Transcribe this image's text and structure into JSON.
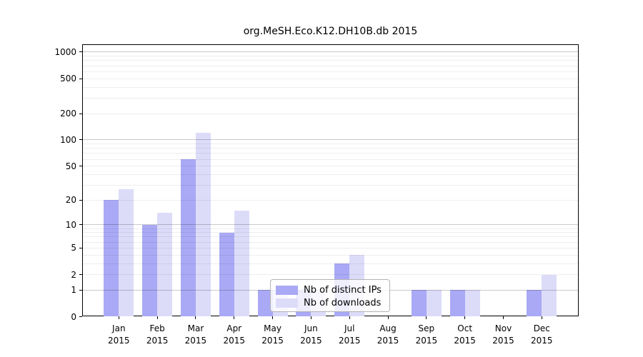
{
  "figure": {
    "title": "org.MeSH.Eco.K12.DH10B.db 2015"
  },
  "chart_data": {
    "type": "bar",
    "title": "org.MeSH.Eco.K12.DH10B.db 2015",
    "categories": [
      "Jan 2015",
      "Feb 2015",
      "Mar 2015",
      "Apr 2015",
      "May 2015",
      "Jun 2015",
      "Jul 2015",
      "Aug 2015",
      "Sep 2015",
      "Oct 2015",
      "Nov 2015",
      "Dec 2015"
    ],
    "series": [
      {
        "name": "Nb of distinct IPs",
        "color": "#a9a9f5",
        "values": [
          20,
          10,
          60,
          8,
          1,
          1,
          3,
          0,
          1,
          1,
          0,
          1
        ]
      },
      {
        "name": "Nb of downloads",
        "color": "#dcdcf9",
        "values": [
          27,
          14,
          120,
          15,
          1,
          1,
          4,
          0,
          1,
          1,
          0,
          2
        ]
      }
    ],
    "xlabel": "",
    "ylabel": "",
    "y_axis": {
      "scale": "log10(1+y)",
      "tick_values": [
        0,
        1,
        2,
        5,
        10,
        20,
        50,
        100,
        200,
        500,
        1000
      ],
      "ylim": [
        0,
        1230
      ]
    },
    "grid": "on",
    "legend": {
      "position": "lower center-left, inside plot",
      "labels": [
        "Nb of distinct IPs",
        "Nb of downloads"
      ]
    }
  },
  "colors": {
    "bar_distinct_ips": "#a9a9f5",
    "bar_downloads": "#dcdcf9",
    "grid_major": "#c9c9c9",
    "grid_minor": "#ededed",
    "axis_line": "#000000",
    "legend_border": "#b3b3b3",
    "background": "#ffffff"
  }
}
